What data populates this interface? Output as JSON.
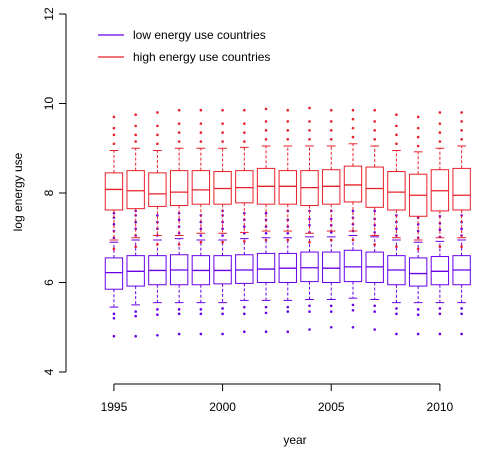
{
  "chart_data": {
    "type": "box",
    "title": "",
    "xlabel": "year",
    "ylabel": "log energy use",
    "xlim": [
      1993.3,
      2011.8
    ],
    "ylim": [
      4,
      12
    ],
    "x_ticks": [
      1995,
      2000,
      2005,
      2010
    ],
    "y_ticks": [
      4,
      6,
      8,
      10,
      12
    ],
    "legend_position": "top-left",
    "colors": {
      "low": "#6a00e8",
      "high": "#e8202a"
    },
    "series": [
      {
        "name": "low energy use countries",
        "color_key": "low",
        "boxes": [
          {
            "year": 1995,
            "whisker_low": 5.45,
            "q1": 5.85,
            "median": 6.22,
            "q3": 6.55,
            "whisker_high": 6.9,
            "outliers_low": [
              4.8,
              5.2,
              5.3
            ],
            "outliers_high": [
              7.0,
              7.15,
              7.3,
              7.45,
              7.55
            ]
          },
          {
            "year": 1996,
            "whisker_low": 5.5,
            "q1": 5.92,
            "median": 6.25,
            "q3": 6.6,
            "whisker_high": 6.95,
            "outliers_low": [
              4.8,
              5.25,
              5.35
            ],
            "outliers_high": [
              7.05,
              7.2,
              7.35,
              7.5,
              7.6
            ]
          },
          {
            "year": 1997,
            "whisker_low": 5.55,
            "q1": 5.95,
            "median": 6.27,
            "q3": 6.6,
            "whisker_high": 6.95,
            "outliers_low": [
              4.82,
              5.28,
              5.4
            ],
            "outliers_high": [
              7.05,
              7.2,
              7.35,
              7.5
            ]
          },
          {
            "year": 1998,
            "whisker_low": 5.55,
            "q1": 5.95,
            "median": 6.28,
            "q3": 6.62,
            "whisker_high": 6.98,
            "outliers_low": [
              4.85,
              5.3,
              5.4
            ],
            "outliers_high": [
              7.1,
              7.25,
              7.4,
              7.55
            ]
          },
          {
            "year": 1999,
            "whisker_low": 5.55,
            "q1": 5.95,
            "median": 6.27,
            "q3": 6.6,
            "whisker_high": 6.95,
            "outliers_low": [
              4.85,
              5.3,
              5.4
            ],
            "outliers_high": [
              7.05,
              7.2,
              7.35,
              7.5
            ]
          },
          {
            "year": 2000,
            "whisker_low": 5.55,
            "q1": 5.97,
            "median": 6.27,
            "q3": 6.6,
            "whisker_high": 6.95,
            "outliers_low": [
              4.85,
              5.3,
              5.42
            ],
            "outliers_high": [
              7.05,
              7.2,
              7.35,
              7.5,
              7.6
            ]
          },
          {
            "year": 2001,
            "whisker_low": 5.6,
            "q1": 5.98,
            "median": 6.28,
            "q3": 6.62,
            "whisker_high": 6.98,
            "outliers_low": [
              4.9,
              5.3,
              5.45
            ],
            "outliers_high": [
              7.1,
              7.25,
              7.4,
              7.55
            ]
          },
          {
            "year": 2002,
            "whisker_low": 5.6,
            "q1": 6.0,
            "median": 6.3,
            "q3": 6.65,
            "whisker_high": 7.0,
            "outliers_low": [
              4.9,
              5.32,
              5.45
            ],
            "outliers_high": [
              7.1,
              7.25,
              7.4,
              7.55
            ]
          },
          {
            "year": 2003,
            "whisker_low": 5.6,
            "q1": 6.0,
            "median": 6.32,
            "q3": 6.65,
            "whisker_high": 7.0,
            "outliers_low": [
              4.9,
              5.35,
              5.45
            ],
            "outliers_high": [
              7.1,
              7.25,
              7.4,
              7.6
            ]
          },
          {
            "year": 2004,
            "whisker_low": 5.62,
            "q1": 6.02,
            "median": 6.33,
            "q3": 6.68,
            "whisker_high": 7.02,
            "outliers_low": [
              4.95,
              5.35,
              5.48
            ],
            "outliers_high": [
              7.12,
              7.28,
              7.42,
              7.6
            ]
          },
          {
            "year": 2005,
            "whisker_low": 5.62,
            "q1": 6.0,
            "median": 6.32,
            "q3": 6.68,
            "whisker_high": 7.02,
            "outliers_low": [
              5.0,
              5.35,
              5.48
            ],
            "outliers_high": [
              7.12,
              7.28,
              7.42,
              7.6
            ]
          },
          {
            "year": 2006,
            "whisker_low": 5.65,
            "q1": 6.02,
            "median": 6.35,
            "q3": 6.72,
            "whisker_high": 7.05,
            "outliers_low": [
              5.0,
              5.38,
              5.5
            ],
            "outliers_high": [
              7.15,
              7.3,
              7.45,
              7.6
            ]
          },
          {
            "year": 2007,
            "whisker_low": 5.62,
            "q1": 6.0,
            "median": 6.35,
            "q3": 6.68,
            "whisker_high": 7.02,
            "outliers_low": [
              4.95,
              5.35,
              5.48
            ],
            "outliers_high": [
              7.12,
              7.28,
              7.42,
              7.6
            ]
          },
          {
            "year": 2008,
            "whisker_low": 5.55,
            "q1": 5.95,
            "median": 6.28,
            "q3": 6.6,
            "whisker_high": 6.95,
            "outliers_low": [
              4.85,
              5.3,
              5.42
            ],
            "outliers_high": [
              7.05,
              7.2,
              7.35,
              7.5
            ]
          },
          {
            "year": 2009,
            "whisker_low": 5.55,
            "q1": 5.92,
            "median": 6.2,
            "q3": 6.55,
            "whisker_high": 6.9,
            "outliers_low": [
              4.85,
              5.28,
              5.4
            ],
            "outliers_high": [
              7.0,
              7.15,
              7.3,
              7.45
            ]
          },
          {
            "year": 2010,
            "whisker_low": 5.55,
            "q1": 5.95,
            "median": 6.25,
            "q3": 6.58,
            "whisker_high": 6.92,
            "outliers_low": [
              4.85,
              5.3,
              5.42
            ],
            "outliers_high": [
              7.02,
              7.18,
              7.32,
              7.48
            ]
          },
          {
            "year": 2011,
            "whisker_low": 5.55,
            "q1": 5.95,
            "median": 6.28,
            "q3": 6.6,
            "whisker_high": 6.95,
            "outliers_low": [
              4.85,
              5.3,
              5.42
            ],
            "outliers_high": [
              7.05,
              7.2,
              7.35,
              7.5
            ]
          }
        ]
      },
      {
        "name": "high energy use countries",
        "color_key": "high",
        "boxes": [
          {
            "year": 1995,
            "whisker_low": 6.95,
            "q1": 7.62,
            "median": 8.08,
            "q3": 8.45,
            "whisker_high": 8.95,
            "outliers_low": [
              6.75
            ],
            "outliers_high": [
              9.1,
              9.3,
              9.45,
              9.7
            ]
          },
          {
            "year": 1996,
            "whisker_low": 7.0,
            "q1": 7.65,
            "median": 8.05,
            "q3": 8.5,
            "whisker_high": 9.0,
            "outliers_low": [
              6.8
            ],
            "outliers_high": [
              9.15,
              9.3,
              9.5,
              9.75
            ]
          },
          {
            "year": 1997,
            "whisker_low": 7.05,
            "q1": 7.7,
            "median": 7.98,
            "q3": 8.45,
            "whisker_high": 8.95,
            "outliers_low": [
              6.85
            ],
            "outliers_high": [
              9.1,
              9.3,
              9.5,
              9.8
            ]
          },
          {
            "year": 1998,
            "whisker_low": 7.05,
            "q1": 7.72,
            "median": 8.02,
            "q3": 8.5,
            "whisker_high": 9.0,
            "outliers_low": [
              6.85
            ],
            "outliers_high": [
              9.15,
              9.35,
              9.55,
              9.85
            ]
          },
          {
            "year": 1999,
            "whisker_low": 7.1,
            "q1": 7.75,
            "median": 8.07,
            "q3": 8.5,
            "whisker_high": 9.0,
            "outliers_low": [
              6.9
            ],
            "outliers_high": [
              9.15,
              9.35,
              9.55,
              9.85
            ]
          },
          {
            "year": 2000,
            "whisker_low": 7.1,
            "q1": 7.75,
            "median": 8.1,
            "q3": 8.48,
            "whisker_high": 9.0,
            "outliers_low": [
              6.9
            ],
            "outliers_high": [
              9.15,
              9.35,
              9.55,
              9.85
            ]
          },
          {
            "year": 2001,
            "whisker_low": 7.12,
            "q1": 7.78,
            "median": 8.12,
            "q3": 8.5,
            "whisker_high": 9.02,
            "outliers_low": [
              6.92
            ],
            "outliers_high": [
              9.15,
              9.35,
              9.55,
              9.85
            ]
          },
          {
            "year": 2002,
            "whisker_low": 7.15,
            "q1": 7.75,
            "median": 8.15,
            "q3": 8.55,
            "whisker_high": 9.05,
            "outliers_low": [
              6.95
            ],
            "outliers_high": [
              9.2,
              9.4,
              9.6,
              9.88
            ]
          },
          {
            "year": 2003,
            "whisker_low": 7.15,
            "q1": 7.75,
            "median": 8.15,
            "q3": 8.5,
            "whisker_high": 9.05,
            "outliers_low": [
              6.95
            ],
            "outliers_high": [
              9.2,
              9.4,
              9.6,
              9.85
            ]
          },
          {
            "year": 2004,
            "whisker_low": 7.1,
            "q1": 7.72,
            "median": 8.12,
            "q3": 8.5,
            "whisker_high": 9.05,
            "outliers_low": [
              6.9
            ],
            "outliers_high": [
              9.2,
              9.4,
              9.6,
              9.9
            ]
          },
          {
            "year": 2005,
            "whisker_low": 7.15,
            "q1": 7.75,
            "median": 8.15,
            "q3": 8.52,
            "whisker_high": 9.05,
            "outliers_low": [
              6.95
            ],
            "outliers_high": [
              9.2,
              9.4,
              9.6,
              9.85
            ]
          },
          {
            "year": 2006,
            "whisker_low": 7.15,
            "q1": 7.8,
            "median": 8.18,
            "q3": 8.6,
            "whisker_high": 9.1,
            "outliers_low": [
              6.95
            ],
            "outliers_high": [
              9.25,
              9.45,
              9.65,
              9.85
            ]
          },
          {
            "year": 2007,
            "whisker_low": 7.05,
            "q1": 7.68,
            "median": 8.1,
            "q3": 8.58,
            "whisker_high": 9.05,
            "outliers_low": [
              6.85
            ],
            "outliers_high": [
              9.2,
              9.4,
              9.6,
              9.85
            ]
          },
          {
            "year": 2008,
            "whisker_low": 7.0,
            "q1": 7.62,
            "median": 8.02,
            "q3": 8.48,
            "whisker_high": 8.95,
            "outliers_low": [
              6.8
            ],
            "outliers_high": [
              9.1,
              9.3,
              9.5,
              9.75
            ]
          },
          {
            "year": 2009,
            "whisker_low": 6.95,
            "q1": 7.48,
            "median": 7.95,
            "q3": 8.42,
            "whisker_high": 8.92,
            "outliers_low": [
              6.75
            ],
            "outliers_high": [
              9.05,
              9.25,
              9.45,
              9.7
            ]
          },
          {
            "year": 2010,
            "whisker_low": 7.0,
            "q1": 7.6,
            "median": 8.05,
            "q3": 8.52,
            "whisker_high": 9.0,
            "outliers_low": [
              6.8
            ],
            "outliers_high": [
              9.15,
              9.35,
              9.55,
              9.8
            ]
          },
          {
            "year": 2011,
            "whisker_low": 7.0,
            "q1": 7.62,
            "median": 7.95,
            "q3": 8.55,
            "whisker_high": 9.05,
            "outliers_low": [
              6.8
            ],
            "outliers_high": [
              9.2,
              9.4,
              9.6,
              9.8
            ]
          }
        ]
      }
    ]
  }
}
